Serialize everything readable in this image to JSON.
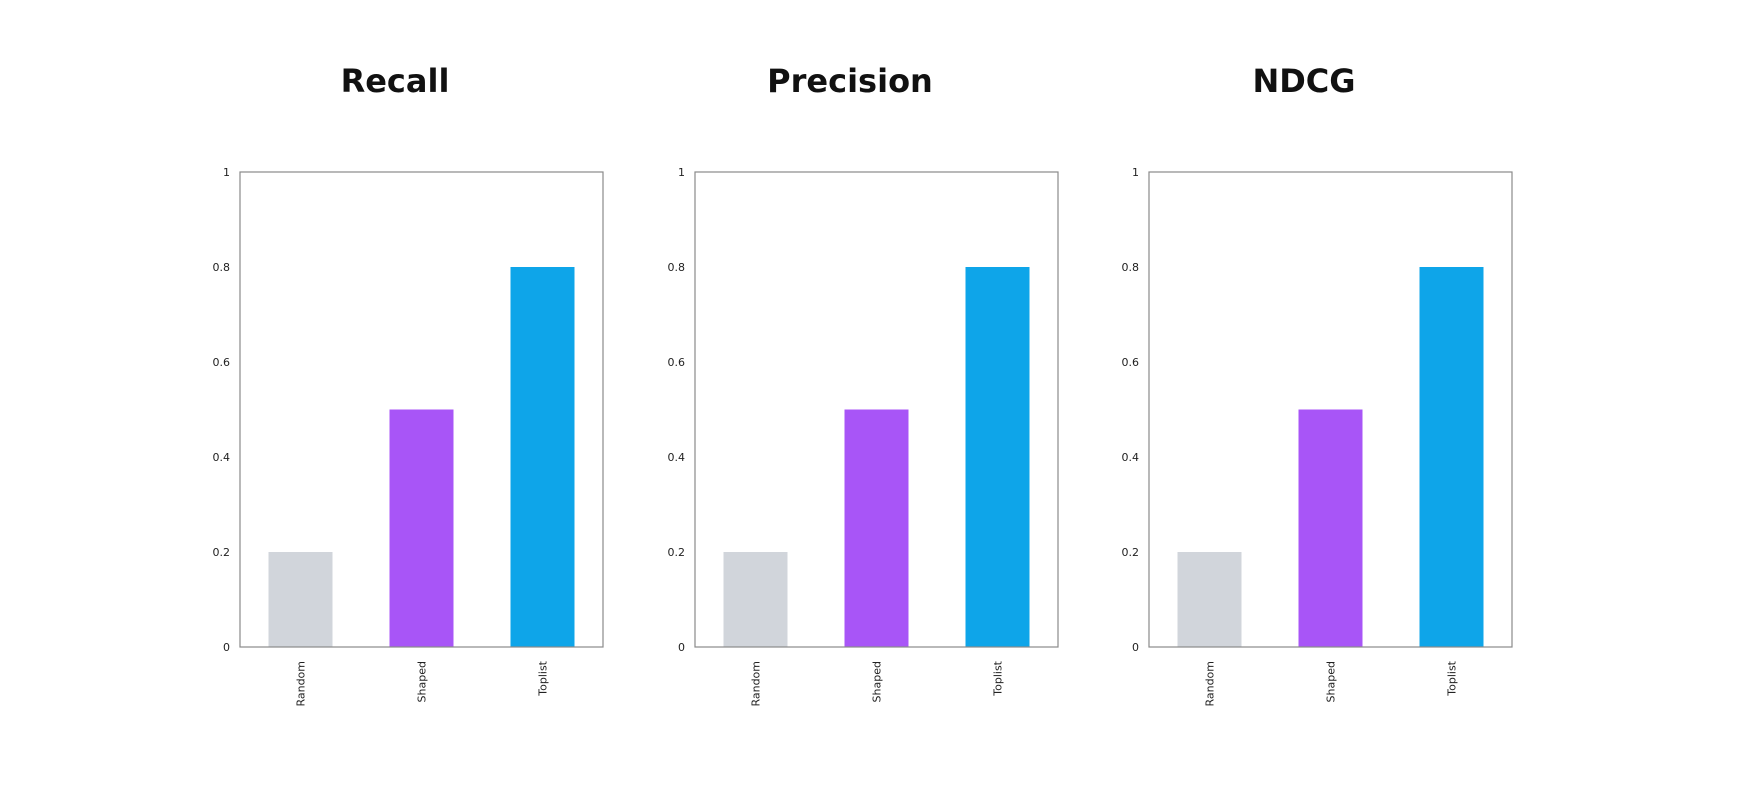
{
  "chart_data": [
    {
      "type": "bar",
      "title": "Recall",
      "categories": [
        "Random",
        "Shaped",
        "Toplist"
      ],
      "values": [
        0.2,
        0.5,
        0.8
      ],
      "colors": [
        "#d1d5db",
        "#a855f7",
        "#0ea5e9"
      ],
      "yticks": [
        "0",
        "0.2",
        "0.4",
        "0.6",
        "0.8",
        "1"
      ],
      "ylim": [
        0,
        1
      ],
      "xlabel": "",
      "ylabel": "",
      "grid": false
    },
    {
      "type": "bar",
      "title": "Precision",
      "categories": [
        "Random",
        "Shaped",
        "Toplist"
      ],
      "values": [
        0.2,
        0.5,
        0.8
      ],
      "colors": [
        "#d1d5db",
        "#a855f7",
        "#0ea5e9"
      ],
      "yticks": [
        "0",
        "0.2",
        "0.4",
        "0.6",
        "0.8",
        "1"
      ],
      "ylim": [
        0,
        1
      ],
      "xlabel": "",
      "ylabel": "",
      "grid": false
    },
    {
      "type": "bar",
      "title": "NDCG",
      "categories": [
        "Random",
        "Shaped",
        "Toplist"
      ],
      "values": [
        0.2,
        0.5,
        0.8
      ],
      "colors": [
        "#d1d5db",
        "#a855f7",
        "#0ea5e9"
      ],
      "yticks": [
        "0",
        "0.2",
        "0.4",
        "0.6",
        "0.8",
        "1"
      ],
      "ylim": [
        0,
        1
      ],
      "xlabel": "",
      "ylabel": "",
      "grid": false
    }
  ]
}
